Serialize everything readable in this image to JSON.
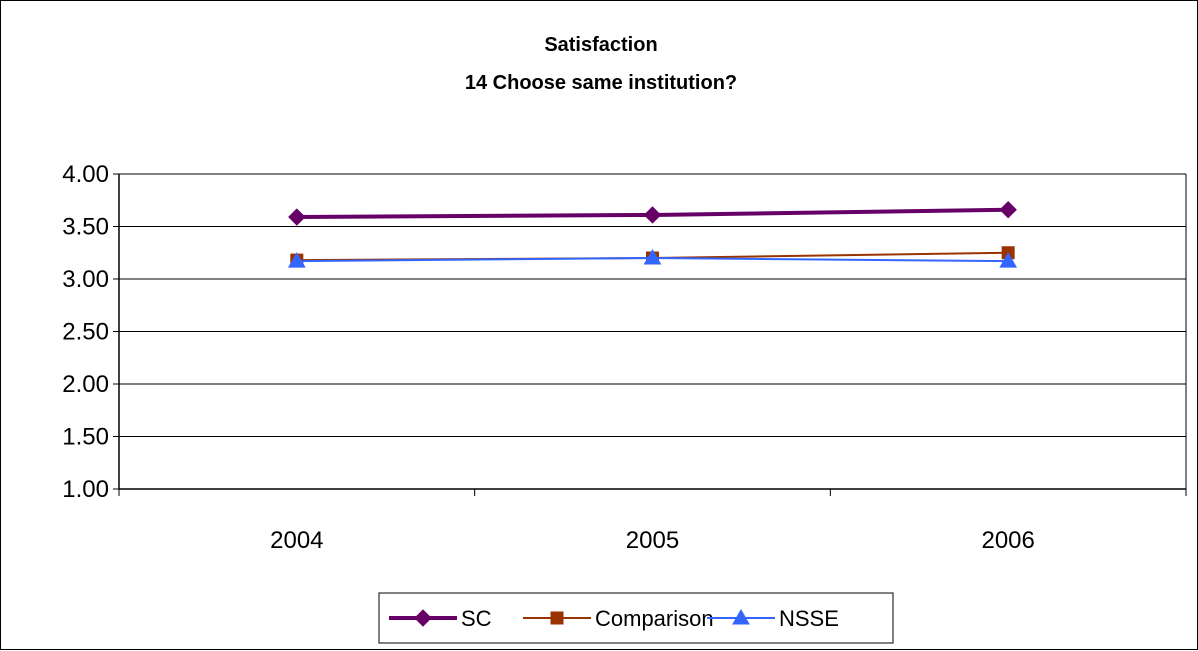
{
  "chart_data": {
    "type": "line",
    "title": "Satisfaction",
    "subtitle": "14 Choose same institution?",
    "xlabel": "",
    "ylabel": "",
    "categories": [
      "2004",
      "2005",
      "2006"
    ],
    "ylim": [
      1.0,
      4.0
    ],
    "yticks": [
      "1.00",
      "1.50",
      "2.00",
      "2.50",
      "3.00",
      "3.50",
      "4.00"
    ],
    "grid": true,
    "legend_position": "bottom",
    "series": [
      {
        "name": "SC",
        "values": [
          3.59,
          3.61,
          3.66
        ],
        "color": "#660066",
        "marker": "diamond"
      },
      {
        "name": "Comparison",
        "values": [
          3.18,
          3.2,
          3.25
        ],
        "color": "#993300",
        "marker": "square"
      },
      {
        "name": "NSSE",
        "values": [
          3.17,
          3.2,
          3.17
        ],
        "color": "#3366ff",
        "marker": "triangle"
      }
    ]
  }
}
